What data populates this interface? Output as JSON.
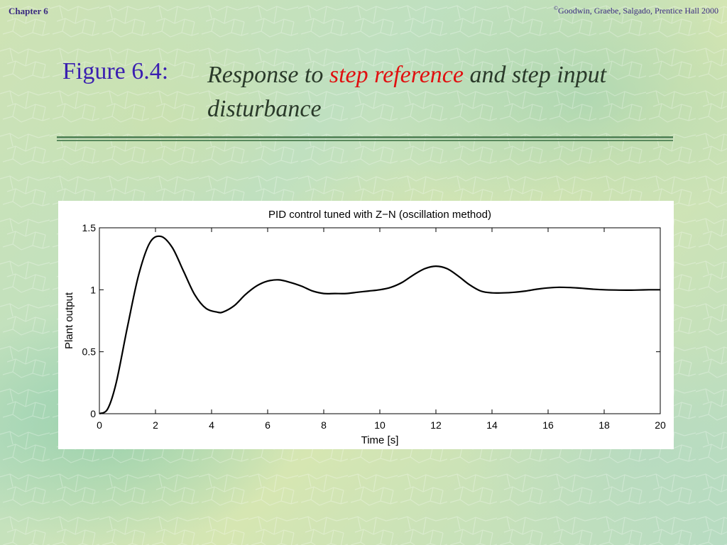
{
  "header": {
    "chapter": "Chapter 6",
    "copyright_symbol": "©",
    "copyright_text": "Goodwin, Graebe, Salgado,  Prentice Hall 2000"
  },
  "slide": {
    "figure_label": "Figure 6.4:",
    "title_part1": "Response to ",
    "title_highlight": "step reference",
    "title_part2": " and step input disturbance"
  },
  "colors": {
    "figure_label": "#3a1fb0",
    "highlight": "#e01010",
    "rule": "#5a8a5e"
  },
  "chart_data": {
    "type": "line",
    "title": "PID control tuned with Z−N (oscillation method)",
    "xlabel": "Time [s]",
    "ylabel": "Plant output",
    "xlim": [
      0,
      20
    ],
    "ylim": [
      0,
      1.5
    ],
    "xticks": [
      0,
      2,
      4,
      6,
      8,
      10,
      12,
      14,
      16,
      18,
      20
    ],
    "yticks": [
      0,
      0.5,
      1,
      1.5
    ],
    "ytick_labels": [
      "0",
      "0.5",
      "1",
      "1.5"
    ],
    "grid": false,
    "series": [
      {
        "x": [
          0,
          0.3,
          0.6,
          1.0,
          1.4,
          1.8,
          2.2,
          2.6,
          3.0,
          3.4,
          3.8,
          4.2,
          4.4,
          4.8,
          5.2,
          5.6,
          6.0,
          6.4,
          6.8,
          7.2,
          7.6,
          8.0,
          8.4,
          8.8,
          9.2,
          9.6,
          10.0,
          10.4,
          10.8,
          11.2,
          11.6,
          12.0,
          12.4,
          12.8,
          13.2,
          13.6,
          14.0,
          14.4,
          14.8,
          15.2,
          15.6,
          16.0,
          16.4,
          16.8,
          17.2,
          17.6,
          18.0,
          18.4,
          18.8,
          19.2,
          19.6,
          20.0
        ],
        "y": [
          0,
          0.04,
          0.25,
          0.7,
          1.12,
          1.38,
          1.43,
          1.34,
          1.15,
          0.96,
          0.85,
          0.82,
          0.82,
          0.87,
          0.96,
          1.03,
          1.07,
          1.08,
          1.06,
          1.03,
          0.99,
          0.97,
          0.97,
          0.97,
          0.98,
          0.99,
          1.0,
          1.02,
          1.06,
          1.12,
          1.17,
          1.19,
          1.17,
          1.11,
          1.04,
          0.99,
          0.975,
          0.975,
          0.98,
          0.99,
          1.005,
          1.015,
          1.02,
          1.018,
          1.012,
          1.005,
          1.0,
          0.998,
          0.997,
          0.998,
          1.0,
          1.0
        ]
      }
    ]
  }
}
